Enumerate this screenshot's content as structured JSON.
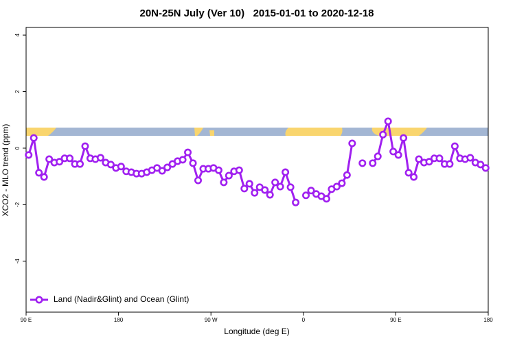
{
  "chart_data": {
    "type": "line",
    "title": "20N-25N July (Ver 10)   2015-01-01 to 2020-12-18",
    "x_label": "Longitude (deg E)",
    "y_label": "XCO2 - MLO trend (ppm)",
    "xlim": [
      90,
      540
    ],
    "ylim": [
      -5.8,
      4.27
    ],
    "xticks": [
      {
        "value": 90,
        "label": "90 E"
      },
      {
        "value": 180,
        "label": "180"
      },
      {
        "value": 270,
        "label": "90 W"
      },
      {
        "value": 360,
        "label": "0"
      },
      {
        "value": 450,
        "label": "90 E"
      },
      {
        "value": 540,
        "label": "180"
      }
    ],
    "yticks": [
      -4,
      -2,
      0,
      2,
      4
    ],
    "legend": "lower left",
    "x": [
      92.5,
      97.5,
      102.5,
      107.5,
      112.5,
      117.5,
      122.5,
      127.5,
      132.5,
      137.5,
      142.5,
      147.5,
      152.5,
      157.5,
      162.5,
      167.5,
      172.5,
      177.5,
      182.5,
      187.5,
      192.5,
      197.5,
      202.5,
      207.5,
      212.5,
      217.5,
      222.5,
      227.5,
      232.5,
      237.5,
      242.5,
      247.5,
      252.5,
      257.5,
      262.5,
      267.5,
      272.5,
      277.5,
      282.5,
      287.5,
      292.5,
      297.5,
      302.5,
      307.5,
      312.5,
      317.5,
      322.5,
      327.5,
      332.5,
      337.5,
      342.5,
      347.5,
      352.5,
      357.5,
      362.5,
      367.5,
      372.5,
      377.5,
      382.5,
      387.5,
      392.5,
      397.5,
      402.5,
      407.5,
      412.5,
      417.5,
      422.5,
      427.5,
      432.5,
      437.5,
      442.5,
      447.5,
      452.5,
      457.5,
      462.5,
      467.5,
      472.5,
      477.5,
      482.5,
      487.5,
      492.5,
      497.5,
      502.5,
      507.5,
      512.5,
      517.5,
      522.5,
      527.5,
      532.5,
      537.5
    ],
    "series": [
      {
        "name": "Land (Nadir&Glint) and Ocean (Glint)",
        "color": "#a020f0",
        "values": [
          -0.24,
          0.36,
          -0.87,
          -1.02,
          -0.39,
          -0.51,
          -0.48,
          -0.36,
          -0.36,
          -0.56,
          -0.56,
          0.07,
          -0.36,
          -0.39,
          -0.34,
          -0.51,
          -0.58,
          -0.7,
          -0.65,
          -0.82,
          -0.85,
          -0.9,
          -0.9,
          -0.85,
          -0.78,
          -0.7,
          -0.8,
          -0.68,
          -0.56,
          -0.46,
          -0.41,
          -0.15,
          -0.53,
          -1.14,
          -0.73,
          -0.73,
          -0.7,
          -0.78,
          -1.21,
          -0.97,
          -0.82,
          -0.78,
          -1.43,
          -1.26,
          -1.58,
          -1.38,
          -1.48,
          -1.65,
          -1.21,
          -1.36,
          -0.85,
          -1.38,
          -1.92,
          null,
          -1.67,
          -1.5,
          -1.62,
          -1.7,
          -1.79,
          -1.45,
          -1.36,
          -1.24,
          -0.95,
          0.17,
          null,
          -0.53,
          null,
          -0.53,
          -0.29,
          0.48,
          0.95,
          -0.12,
          -0.24,
          0.36,
          -0.87,
          -1.02,
          -0.39,
          -0.51,
          -0.48,
          -0.36,
          -0.36,
          -0.56,
          -0.56,
          0.07,
          -0.36,
          -0.39,
          -0.34,
          -0.51,
          -0.58,
          -0.7
        ]
      }
    ]
  }
}
